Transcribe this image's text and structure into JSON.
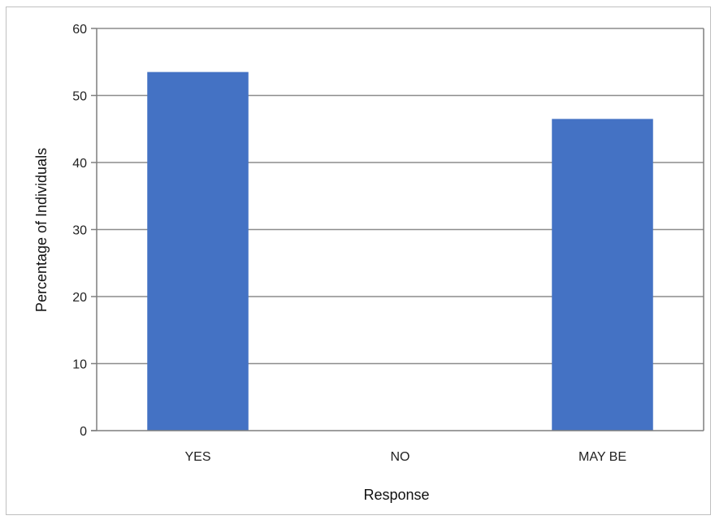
{
  "chart_data": {
    "type": "bar",
    "title": "",
    "xlabel": "Response",
    "ylabel": "Percentage of Individuals",
    "categories": [
      "YES",
      "NO",
      "MAY BE"
    ],
    "values": [
      53.5,
      0,
      46.5
    ],
    "ylim": [
      0,
      60
    ],
    "yticks": [
      0,
      10,
      20,
      30,
      40,
      50,
      60
    ],
    "grid": true,
    "legend": "none",
    "colors": {
      "bar": "#4472c4",
      "grid": "#8c8c8c",
      "axis": "#7f7f7f"
    }
  }
}
